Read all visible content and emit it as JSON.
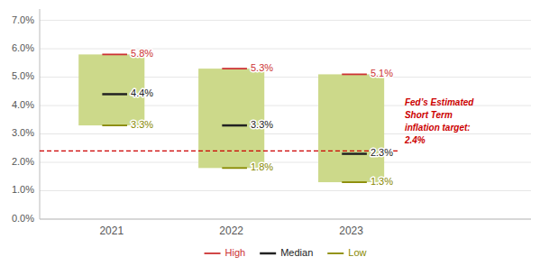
{
  "chart_data": {
    "type": "bar",
    "x": [
      2021,
      2022,
      2023
    ],
    "xlim": [
      2020.4,
      2024.5
    ],
    "xticks": [
      2021,
      2022,
      2023
    ],
    "ylim": [
      0,
      7.4
    ],
    "yticks": [
      {
        "value": 0,
        "label": "0.0%"
      },
      {
        "value": 1,
        "label": "1.0%"
      },
      {
        "value": 2,
        "label": "2.0%"
      },
      {
        "value": 3,
        "label": "3.0%"
      },
      {
        "value": 4,
        "label": "4.0%"
      },
      {
        "value": 5,
        "label": "5.0%"
      },
      {
        "value": 6,
        "label": "6.0%"
      },
      {
        "value": 7,
        "label": "7.0%"
      }
    ],
    "color": "#ccd98a",
    "series": [
      {
        "name": "High",
        "color": "#cc3333",
        "values": [
          5.8,
          5.3,
          5.1
        ],
        "value_labels": [
          "5.8%",
          "5.3%",
          "5.1%"
        ]
      },
      {
        "name": "Median",
        "color": "#222222",
        "values": [
          4.4,
          3.3,
          2.3
        ],
        "value_labels": [
          "4.4%",
          "3.3%",
          "2.3%"
        ]
      },
      {
        "name": "Low",
        "color": "#888800",
        "values": [
          3.3,
          1.8,
          1.3
        ],
        "value_labels": [
          "3.3%",
          "1.8%",
          "1.3%"
        ]
      }
    ],
    "annotations": [
      {
        "text": "Fed’s Estimated\nShort Term\ninflation target:\n2.4%",
        "y": 2.4,
        "color": "#cc0000",
        "line_style": "dashed"
      }
    ],
    "data_labels": true,
    "grid": true,
    "legend": "bottom"
  }
}
